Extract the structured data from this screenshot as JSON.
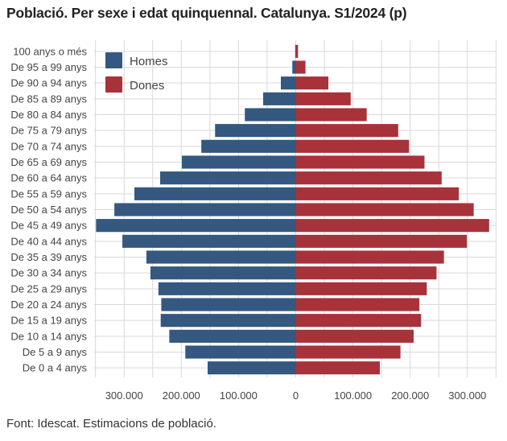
{
  "title": "Població. Per sexe i edat quinquennal. Catalunya. S1/2024 (p)",
  "source": "Font: Idescat. Estimacions de població.",
  "colors": {
    "homes": "#34587f",
    "dones": "#a8323a",
    "grid": "#d9d9d9"
  },
  "chart_data": {
    "type": "bar",
    "orientation": "horizontal",
    "layout": "population-pyramid",
    "categories": [
      "100 anys o més",
      "De 95 a 99 anys",
      "De 90 a 94 anys",
      "De 85 a 89 anys",
      "De 80 a 84 anys",
      "De 75 a 79 anys",
      "De 70 a 74 anys",
      "De 65 a 69 anys",
      "De 60 a 64 anys",
      "De 55 a 59 anys",
      "De 50 a 54 anys",
      "De 45 a 49 anys",
      "De 40 a 44 anys",
      "De 35 a 39 anys",
      "De 30 a 34 anys",
      "De 25 a 29 anys",
      "De 20 a 24 anys",
      "De 15 a 19 anys",
      "De 10 a 14 anys",
      "De 5 a 9 anys",
      "De 0 a 4 anys"
    ],
    "series": [
      {
        "name": "Homes",
        "side": "left",
        "values": [
          1000,
          6000,
          26000,
          57000,
          89000,
          141000,
          165000,
          199000,
          237000,
          282000,
          317000,
          349000,
          303000,
          261000,
          254000,
          240000,
          235000,
          236000,
          221000,
          193000,
          154000
        ]
      },
      {
        "name": "Dones",
        "side": "right",
        "values": [
          4000,
          17000,
          57000,
          96000,
          124000,
          179000,
          198000,
          225000,
          255000,
          285000,
          311000,
          338000,
          299000,
          259000,
          246000,
          229000,
          216000,
          219000,
          206000,
          183000,
          147000
        ]
      }
    ],
    "x_ticks": [
      "300.000",
      "200.000",
      "100.000",
      "0",
      "100.000",
      "200.000",
      "300.000"
    ],
    "x_tick_values": [
      -300000,
      -200000,
      -100000,
      0,
      100000,
      200000,
      300000
    ],
    "xlim": [
      -350000,
      350000
    ],
    "legend": {
      "position": "top-left",
      "entries": [
        "Homes",
        "Dones"
      ]
    },
    "grid": true
  }
}
